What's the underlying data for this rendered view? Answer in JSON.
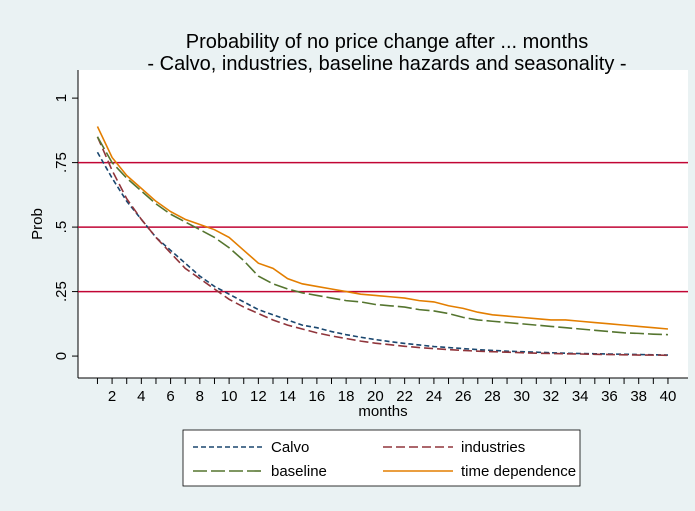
{
  "chart_data": {
    "type": "line",
    "title": "Probability of no price change after ... months",
    "subtitle": "- Calvo, industries, baseline hazards and seasonality -",
    "xlabel": "months",
    "ylabel": "Prob",
    "x": [
      1,
      2,
      3,
      4,
      5,
      6,
      7,
      8,
      9,
      10,
      11,
      12,
      13,
      14,
      15,
      16,
      17,
      18,
      19,
      20,
      21,
      22,
      23,
      24,
      25,
      26,
      27,
      28,
      29,
      30,
      31,
      32,
      33,
      34,
      35,
      36,
      37,
      38,
      39,
      40
    ],
    "series": [
      {
        "name": "Calvo",
        "color": "#1a476f",
        "dash": "5,3",
        "values": [
          0.79,
          0.69,
          0.6,
          0.53,
          0.46,
          0.41,
          0.36,
          0.31,
          0.27,
          0.24,
          0.21,
          0.18,
          0.16,
          0.14,
          0.12,
          0.11,
          0.095,
          0.083,
          0.073,
          0.064,
          0.056,
          0.049,
          0.043,
          0.037,
          0.033,
          0.029,
          0.025,
          0.022,
          0.019,
          0.017,
          0.015,
          0.013,
          0.011,
          0.01,
          0.009,
          0.008,
          0.007,
          0.006,
          0.005,
          0.004
        ]
      },
      {
        "name": "industries",
        "color": "#90353b",
        "dash": "9,4",
        "values": [
          0.85,
          0.72,
          0.61,
          0.53,
          0.46,
          0.4,
          0.34,
          0.3,
          0.26,
          0.22,
          0.19,
          0.165,
          0.14,
          0.12,
          0.105,
          0.09,
          0.078,
          0.068,
          0.058,
          0.05,
          0.044,
          0.038,
          0.033,
          0.029,
          0.025,
          0.022,
          0.019,
          0.017,
          0.015,
          0.013,
          0.011,
          0.01,
          0.009,
          0.008,
          0.007,
          0.006,
          0.005,
          0.004,
          0.004,
          0.003
        ]
      },
      {
        "name": "baseline",
        "color": "#55752f",
        "dash": "14,4",
        "values": [
          0.85,
          0.75,
          0.69,
          0.64,
          0.59,
          0.55,
          0.52,
          0.49,
          0.46,
          0.42,
          0.37,
          0.31,
          0.28,
          0.26,
          0.245,
          0.235,
          0.225,
          0.215,
          0.21,
          0.2,
          0.195,
          0.19,
          0.18,
          0.175,
          0.165,
          0.15,
          0.14,
          0.135,
          0.13,
          0.125,
          0.12,
          0.115,
          0.11,
          0.105,
          0.1,
          0.095,
          0.09,
          0.088,
          0.085,
          0.083
        ]
      },
      {
        "name": "time dependence",
        "color": "#e37e00",
        "dash": "",
        "values": [
          0.89,
          0.77,
          0.7,
          0.65,
          0.6,
          0.56,
          0.53,
          0.51,
          0.49,
          0.46,
          0.41,
          0.36,
          0.34,
          0.3,
          0.28,
          0.27,
          0.26,
          0.25,
          0.24,
          0.235,
          0.23,
          0.225,
          0.215,
          0.21,
          0.195,
          0.185,
          0.17,
          0.16,
          0.155,
          0.15,
          0.145,
          0.14,
          0.14,
          0.135,
          0.13,
          0.125,
          0.12,
          0.115,
          0.11,
          0.105
        ]
      }
    ],
    "xlim": [
      -0.33,
      41.37
    ],
    "xticks": [
      2,
      4,
      6,
      8,
      10,
      12,
      14,
      16,
      18,
      20,
      22,
      24,
      26,
      28,
      30,
      32,
      34,
      36,
      38,
      40
    ],
    "xminor_ticks": [
      1,
      3,
      5,
      7,
      9,
      11,
      13,
      15,
      17,
      19,
      21,
      23,
      25,
      27,
      29,
      31,
      33,
      35,
      37,
      39
    ],
    "ylim": [
      -0.085,
      1.109
    ],
    "yticks": [
      {
        "value": 0,
        "label": "0"
      },
      {
        "value": 0.25,
        "label": ".25"
      },
      {
        "value": 0.5,
        "label": ".5"
      },
      {
        "value": 0.75,
        "label": ".75"
      },
      1
    ],
    "grid": true,
    "grid_color": "#c10534",
    "legend": "bottom"
  }
}
